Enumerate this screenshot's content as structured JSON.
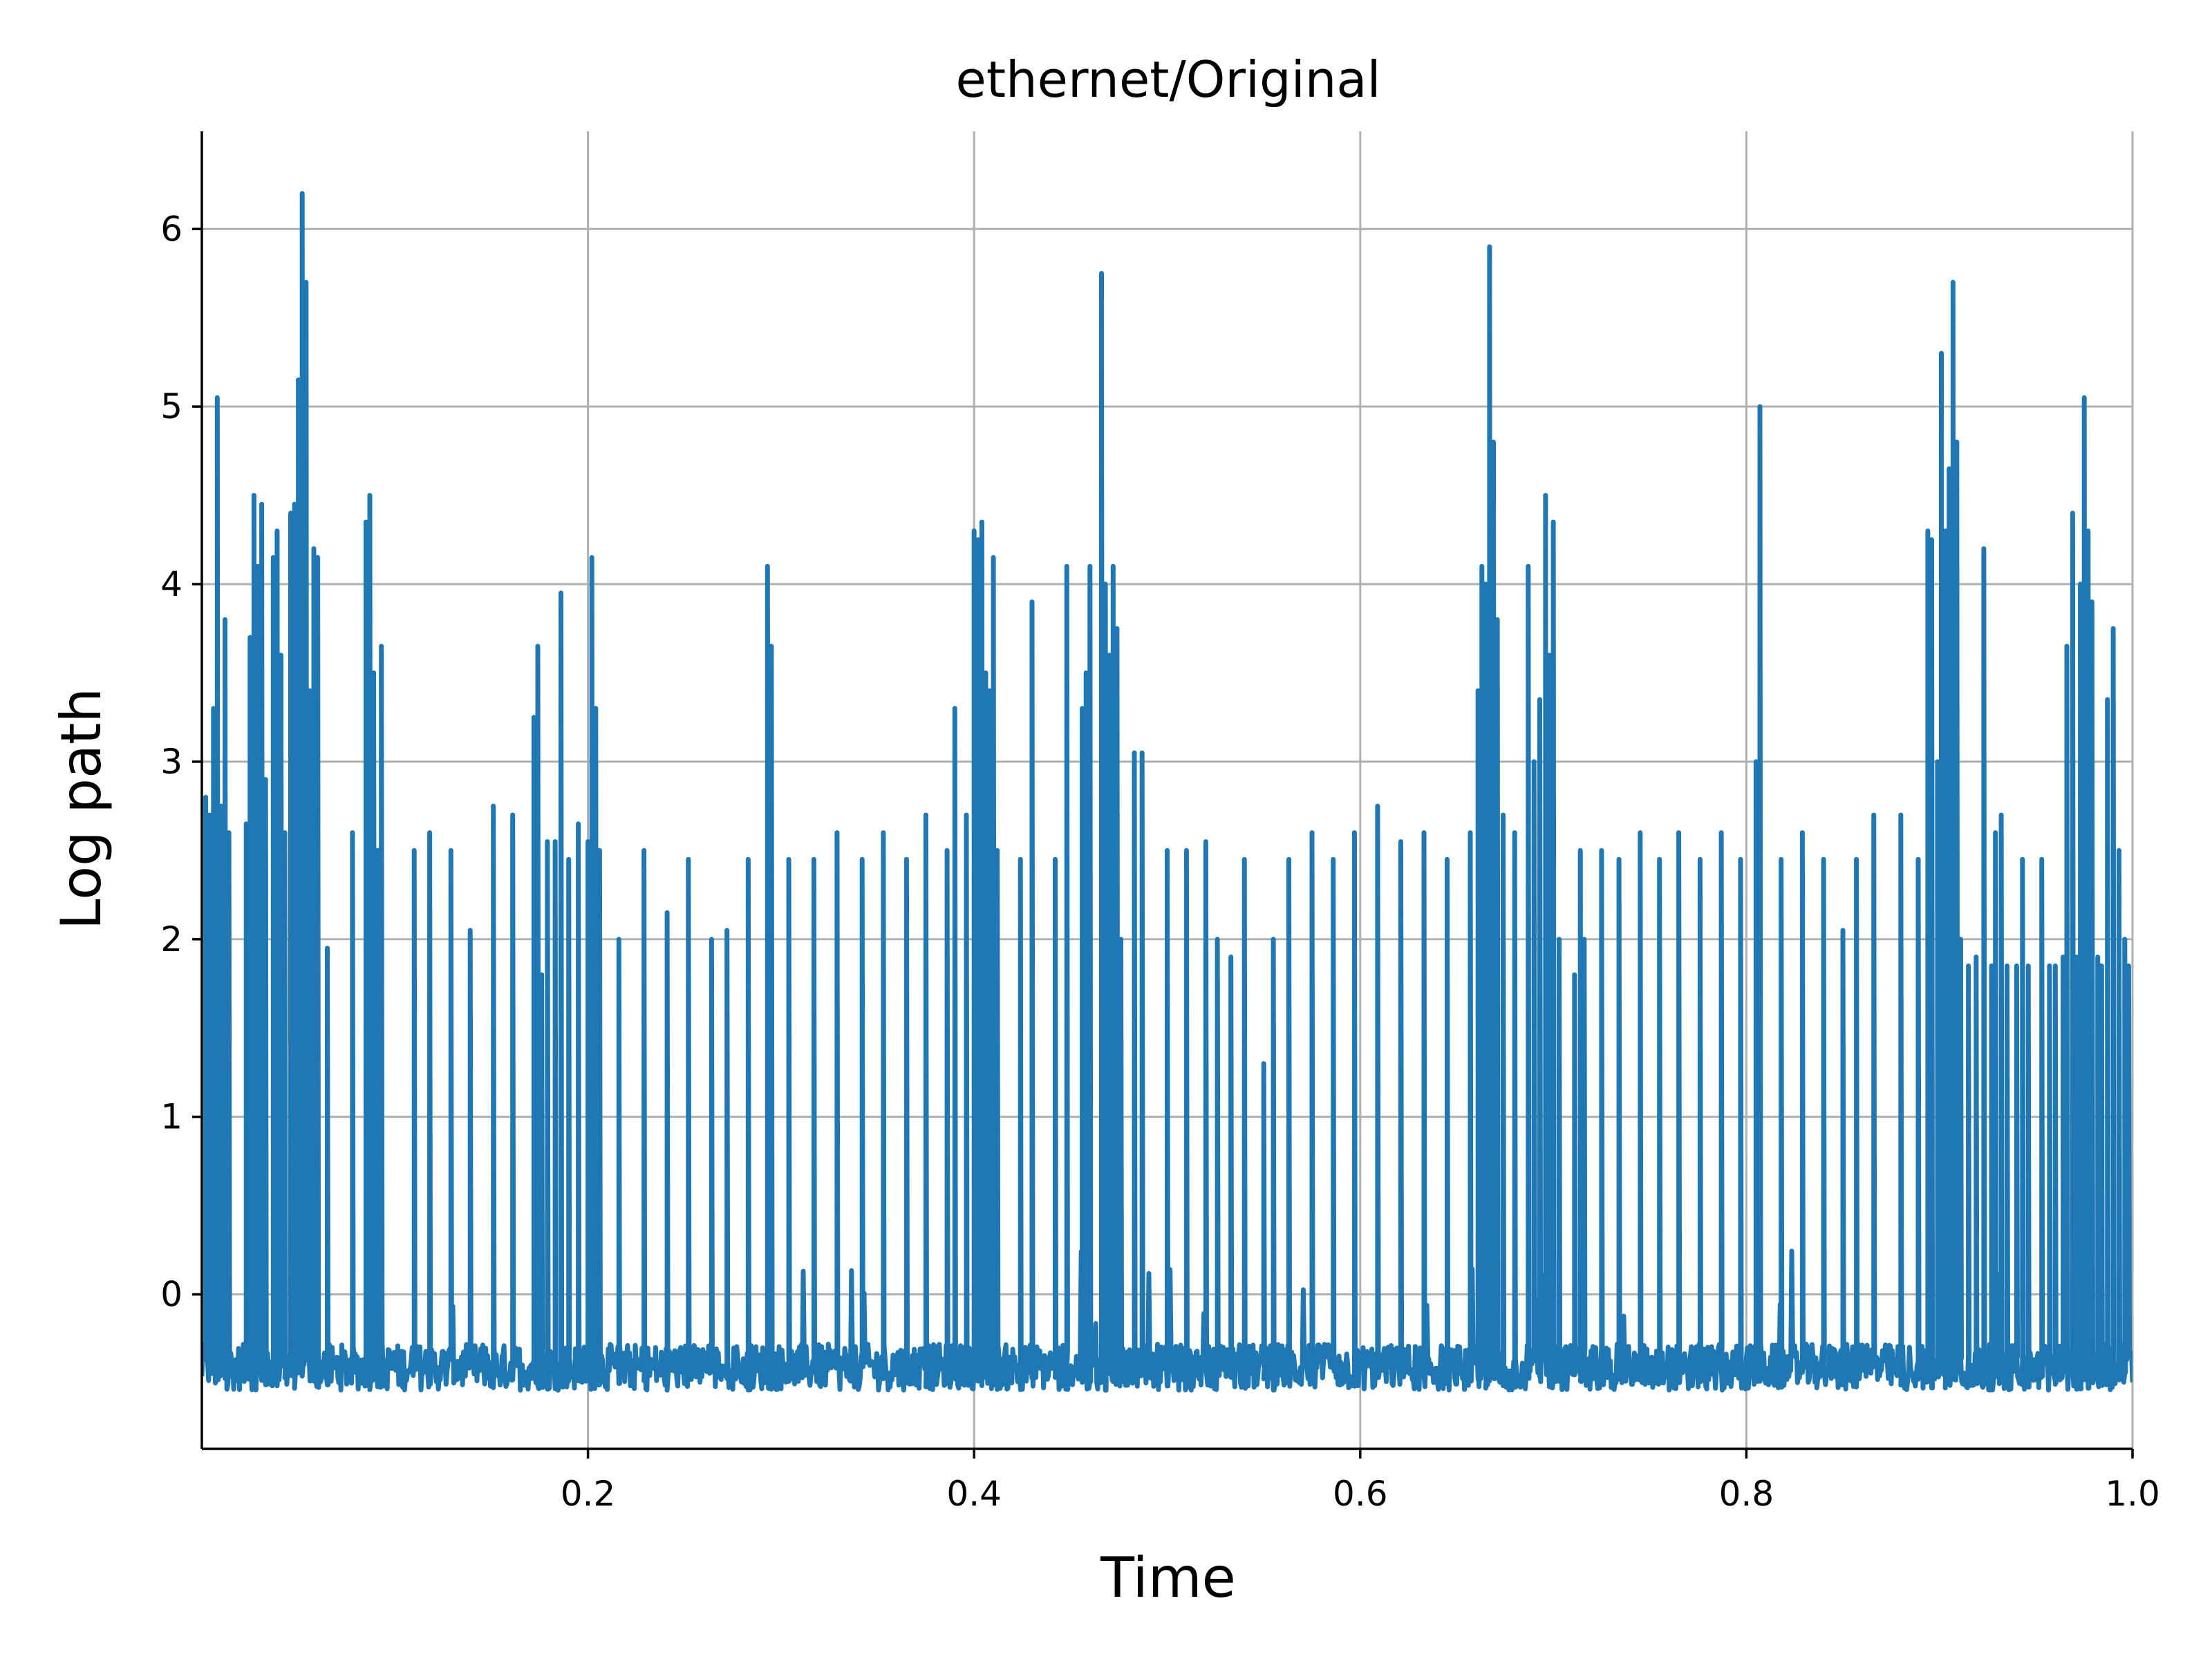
{
  "chart_data": {
    "type": "line",
    "title": "ethernet/Original",
    "xlabel": "Time",
    "ylabel": "Log path",
    "xlim": [
      0.0,
      1.0
    ],
    "ylim": [
      -0.87,
      6.55
    ],
    "xticks": [
      0.2,
      0.4,
      0.6,
      0.8,
      1.0
    ],
    "xtick_labels": [
      "0.2",
      "0.4",
      "0.6",
      "0.8",
      "1.0"
    ],
    "yticks": [
      0,
      1,
      2,
      3,
      4,
      5,
      6
    ],
    "ytick_labels": [
      "0",
      "1",
      "2",
      "3",
      "4",
      "5",
      "6"
    ],
    "grid": true,
    "line_color": "#1f77b4",
    "baseline_range": [
      -0.54,
      -0.28
    ],
    "series": [
      {
        "peaks": [
          [
            0.002,
            2.8
          ],
          [
            0.004,
            2.7
          ],
          [
            0.006,
            3.3
          ],
          [
            0.008,
            5.05
          ],
          [
            0.01,
            2.75
          ],
          [
            0.012,
            3.8
          ],
          [
            0.014,
            2.6
          ],
          [
            0.023,
            2.65
          ],
          [
            0.025,
            3.7
          ],
          [
            0.027,
            4.5
          ],
          [
            0.029,
            4.1
          ],
          [
            0.031,
            4.45
          ],
          [
            0.033,
            2.9
          ],
          [
            0.037,
            4.15
          ],
          [
            0.039,
            4.3
          ],
          [
            0.041,
            3.6
          ],
          [
            0.043,
            2.6
          ],
          [
            0.046,
            4.4
          ],
          [
            0.048,
            4.45
          ],
          [
            0.05,
            5.15
          ],
          [
            0.052,
            6.2
          ],
          [
            0.054,
            5.7
          ],
          [
            0.056,
            3.4
          ],
          [
            0.058,
            4.2
          ],
          [
            0.06,
            4.15
          ],
          [
            0.065,
            1.95
          ],
          [
            0.078,
            2.6
          ],
          [
            0.085,
            4.35
          ],
          [
            0.087,
            4.5
          ],
          [
            0.089,
            3.5
          ],
          [
            0.091,
            2.5
          ],
          [
            0.093,
            3.65
          ],
          [
            0.11,
            2.5
          ],
          [
            0.118,
            2.6
          ],
          [
            0.129,
            2.5
          ],
          [
            0.139,
            2.05
          ],
          [
            0.151,
            2.75
          ],
          [
            0.161,
            2.7
          ],
          [
            0.172,
            3.25
          ],
          [
            0.174,
            3.65
          ],
          [
            0.176,
            1.8
          ],
          [
            0.179,
            2.55
          ],
          [
            0.183,
            2.55
          ],
          [
            0.186,
            3.95
          ],
          [
            0.19,
            2.45
          ],
          [
            0.195,
            2.65
          ],
          [
            0.2,
            2.55
          ],
          [
            0.202,
            4.15
          ],
          [
            0.204,
            3.3
          ],
          [
            0.206,
            2.5
          ],
          [
            0.216,
            2.0
          ],
          [
            0.229,
            2.5
          ],
          [
            0.241,
            2.15
          ],
          [
            0.252,
            2.45
          ],
          [
            0.264,
            2.0
          ],
          [
            0.272,
            2.05
          ],
          [
            0.283,
            2.45
          ],
          [
            0.293,
            4.1
          ],
          [
            0.295,
            3.65
          ],
          [
            0.304,
            2.45
          ],
          [
            0.317,
            2.45
          ],
          [
            0.329,
            2.6
          ],
          [
            0.342,
            2.45
          ],
          [
            0.353,
            2.6
          ],
          [
            0.365,
            2.45
          ],
          [
            0.375,
            2.7
          ],
          [
            0.386,
            2.5
          ],
          [
            0.39,
            3.3
          ],
          [
            0.396,
            2.7
          ],
          [
            0.4,
            4.3
          ],
          [
            0.402,
            4.25
          ],
          [
            0.404,
            4.35
          ],
          [
            0.406,
            3.5
          ],
          [
            0.408,
            3.4
          ],
          [
            0.41,
            4.15
          ],
          [
            0.412,
            2.5
          ],
          [
            0.424,
            2.45
          ],
          [
            0.43,
            3.9
          ],
          [
            0.442,
            2.45
          ],
          [
            0.448,
            4.1
          ],
          [
            0.456,
            3.3
          ],
          [
            0.458,
            3.5
          ],
          [
            0.46,
            4.1
          ],
          [
            0.466,
            5.75
          ],
          [
            0.468,
            4.0
          ],
          [
            0.47,
            3.6
          ],
          [
            0.472,
            4.1
          ],
          [
            0.474,
            3.75
          ],
          [
            0.476,
            2.0
          ],
          [
            0.483,
            3.05
          ],
          [
            0.487,
            3.05
          ],
          [
            0.5,
            2.5
          ],
          [
            0.51,
            2.5
          ],
          [
            0.52,
            2.55
          ],
          [
            0.526,
            2.0
          ],
          [
            0.533,
            1.9
          ],
          [
            0.54,
            2.45
          ],
          [
            0.55,
            1.3
          ],
          [
            0.555,
            2.0
          ],
          [
            0.563,
            2.45
          ],
          [
            0.575,
            2.6
          ],
          [
            0.586,
            2.45
          ],
          [
            0.597,
            2.6
          ],
          [
            0.609,
            2.75
          ],
          [
            0.621,
            2.55
          ],
          [
            0.633,
            2.6
          ],
          [
            0.645,
            2.45
          ],
          [
            0.657,
            2.6
          ],
          [
            0.661,
            3.4
          ],
          [
            0.663,
            4.1
          ],
          [
            0.665,
            4.0
          ],
          [
            0.667,
            5.9
          ],
          [
            0.669,
            4.8
          ],
          [
            0.671,
            3.8
          ],
          [
            0.674,
            2.7
          ],
          [
            0.68,
            2.6
          ],
          [
            0.687,
            4.1
          ],
          [
            0.69,
            3.0
          ],
          [
            0.693,
            3.35
          ],
          [
            0.696,
            4.5
          ],
          [
            0.698,
            3.6
          ],
          [
            0.7,
            4.35
          ],
          [
            0.703,
            2.0
          ],
          [
            0.711,
            1.8
          ],
          [
            0.714,
            2.5
          ],
          [
            0.716,
            2.0
          ],
          [
            0.725,
            2.5
          ],
          [
            0.734,
            2.45
          ],
          [
            0.745,
            2.6
          ],
          [
            0.755,
            2.45
          ],
          [
            0.765,
            2.6
          ],
          [
            0.776,
            2.45
          ],
          [
            0.787,
            2.6
          ],
          [
            0.797,
            2.45
          ],
          [
            0.805,
            3.0
          ],
          [
            0.807,
            5.0
          ],
          [
            0.818,
            2.45
          ],
          [
            0.829,
            2.6
          ],
          [
            0.84,
            2.45
          ],
          [
            0.85,
            2.05
          ],
          [
            0.857,
            2.45
          ],
          [
            0.866,
            2.7
          ],
          [
            0.88,
            2.7
          ],
          [
            0.889,
            2.45
          ],
          [
            0.894,
            4.3
          ],
          [
            0.896,
            4.25
          ],
          [
            0.899,
            3.0
          ],
          [
            0.901,
            5.3
          ],
          [
            0.903,
            4.3
          ],
          [
            0.905,
            4.65
          ],
          [
            0.907,
            5.7
          ],
          [
            0.909,
            4.8
          ],
          [
            0.911,
            2.0
          ],
          [
            0.915,
            1.85
          ],
          [
            0.919,
            1.9
          ],
          [
            0.923,
            4.2
          ],
          [
            0.927,
            1.85
          ],
          [
            0.929,
            2.6
          ],
          [
            0.932,
            2.7
          ],
          [
            0.935,
            1.85
          ],
          [
            0.94,
            1.85
          ],
          [
            0.943,
            2.45
          ],
          [
            0.946,
            1.85
          ],
          [
            0.953,
            2.45
          ],
          [
            0.957,
            1.85
          ],
          [
            0.96,
            1.85
          ],
          [
            0.964,
            1.9
          ],
          [
            0.966,
            3.65
          ],
          [
            0.969,
            4.4
          ],
          [
            0.971,
            1.9
          ],
          [
            0.973,
            4.0
          ],
          [
            0.975,
            5.05
          ],
          [
            0.977,
            4.3
          ],
          [
            0.979,
            3.9
          ],
          [
            0.982,
            1.9
          ],
          [
            0.984,
            1.85
          ],
          [
            0.987,
            3.35
          ],
          [
            0.99,
            3.75
          ],
          [
            0.993,
            2.5
          ],
          [
            0.996,
            2.0
          ],
          [
            0.998,
            1.85
          ]
        ]
      }
    ]
  }
}
